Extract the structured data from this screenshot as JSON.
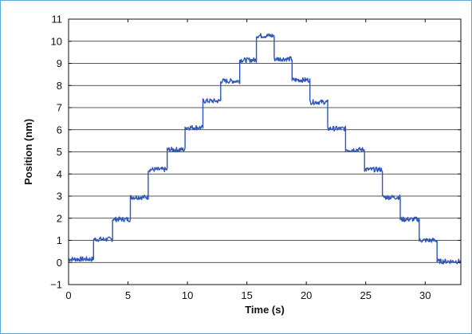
{
  "chart_data": {
    "type": "line",
    "title": "",
    "xlabel": "Time (s)",
    "ylabel": "Position (nm)",
    "xlim": [
      0,
      33
    ],
    "ylim": [
      -1,
      11
    ],
    "xticks": [
      0,
      5,
      10,
      15,
      20,
      25,
      30
    ],
    "yticks": [
      -1,
      0,
      1,
      2,
      3,
      4,
      5,
      6,
      7,
      8,
      9,
      10,
      11
    ],
    "grid": "horizontal",
    "legend": "none",
    "series": [
      {
        "color": "#2f56b8",
        "steps": [
          {
            "x_start": 0.0,
            "x_end": 2.1,
            "y": 0.15
          },
          {
            "x_start": 2.1,
            "x_end": 3.7,
            "y": 1.05
          },
          {
            "x_start": 3.7,
            "x_end": 5.2,
            "y": 1.95
          },
          {
            "x_start": 5.2,
            "x_end": 6.7,
            "y": 2.95
          },
          {
            "x_start": 6.7,
            "x_end": 8.3,
            "y": 4.2
          },
          {
            "x_start": 8.3,
            "x_end": 9.8,
            "y": 5.1
          },
          {
            "x_start": 9.8,
            "x_end": 11.3,
            "y": 6.1
          },
          {
            "x_start": 11.3,
            "x_end": 12.8,
            "y": 7.3
          },
          {
            "x_start": 12.8,
            "x_end": 14.4,
            "y": 8.2
          },
          {
            "x_start": 14.4,
            "x_end": 15.8,
            "y": 9.15
          },
          {
            "x_start": 15.8,
            "x_end": 17.3,
            "y": 10.25
          },
          {
            "x_start": 17.3,
            "x_end": 18.8,
            "y": 9.2
          },
          {
            "x_start": 18.8,
            "x_end": 20.3,
            "y": 8.25
          },
          {
            "x_start": 20.3,
            "x_end": 21.8,
            "y": 7.25
          },
          {
            "x_start": 21.8,
            "x_end": 23.3,
            "y": 6.05
          },
          {
            "x_start": 23.3,
            "x_end": 24.9,
            "y": 5.1
          },
          {
            "x_start": 24.9,
            "x_end": 26.4,
            "y": 4.2
          },
          {
            "x_start": 26.4,
            "x_end": 27.9,
            "y": 2.95
          },
          {
            "x_start": 27.9,
            "x_end": 29.5,
            "y": 1.95
          },
          {
            "x_start": 29.5,
            "x_end": 31.0,
            "y": 1.0
          },
          {
            "x_start": 31.0,
            "x_end": 33.0,
            "y": 0.05
          }
        ]
      }
    ]
  }
}
